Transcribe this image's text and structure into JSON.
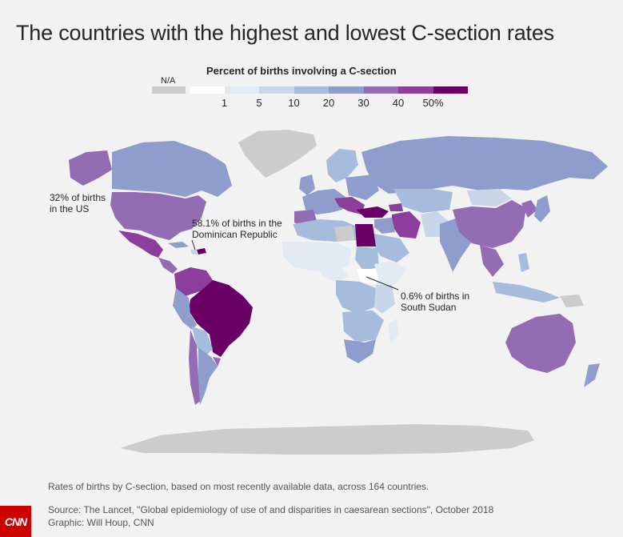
{
  "title": "The countries with the highest and lowest C-section rates",
  "legend": {
    "title": "Percent of births involving a C-section",
    "na_label": "N/A",
    "na_color": "#cccccc",
    "colors": [
      "#ffffff",
      "#e4eaf4",
      "#c9d6ea",
      "#a6bcdc",
      "#8f9dcc",
      "#946cb4",
      "#8c3e9c",
      "#6a0066"
    ],
    "ticks": [
      "1",
      "5",
      "10",
      "20",
      "30",
      "40",
      "50%"
    ]
  },
  "annotations": {
    "us": [
      "32% of births",
      "in the US"
    ],
    "dominican": [
      "58.1% of births in the",
      "Dominican Republic"
    ],
    "south_sudan": [
      "0.6% of births in",
      "South Sudan"
    ]
  },
  "footer": {
    "note": "Rates of births by C-section, based on most recently available data, across 164 countries.",
    "source": "Source: The Lancet, \"Global epidemiology of use of and disparities in caesarean sections\", October 2018",
    "credit": "Graphic: Will Houp, CNN"
  },
  "logo_text": "CNN"
}
